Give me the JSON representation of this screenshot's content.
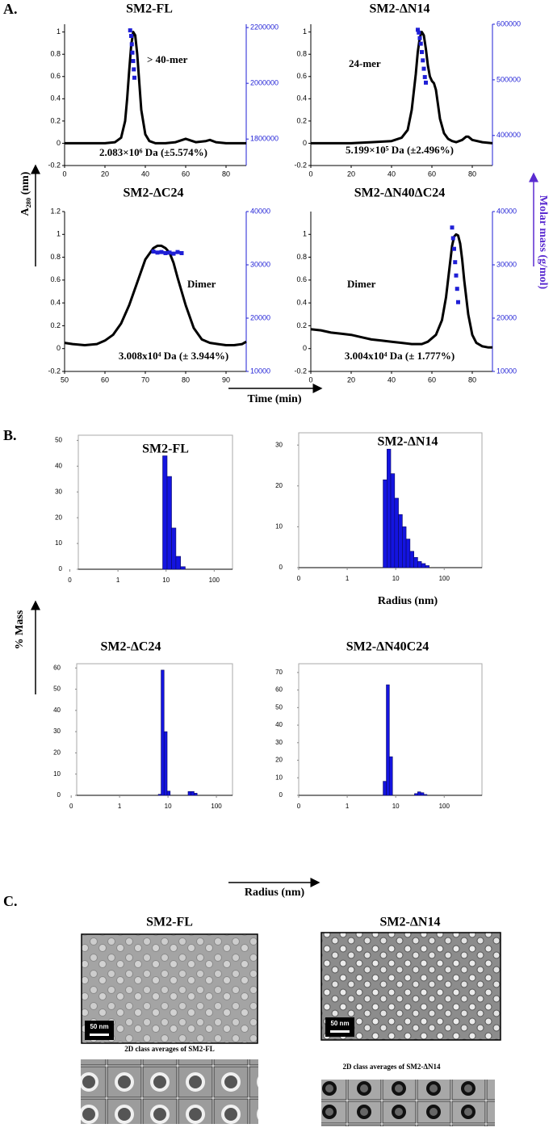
{
  "chart_data": [
    {
      "type": "line",
      "title": "SM2-FL",
      "xlim": [
        0,
        90
      ],
      "xticks": [
        0,
        20,
        40,
        60,
        80
      ],
      "ylim": [
        -0.2,
        1.07
      ],
      "yticks": [
        -0.2,
        0.0,
        0.2,
        0.4,
        0.6,
        0.8,
        1.0
      ],
      "y2lim": [
        1705000,
        2212000
      ],
      "y2ticks": [
        1800000,
        2000000,
        2200000
      ],
      "series": [
        {
          "color": "#000000",
          "x": [
            0,
            5,
            10,
            15,
            20,
            25,
            28,
            30,
            31,
            32,
            33,
            34,
            35,
            36,
            37,
            38,
            40,
            42,
            45,
            50,
            55,
            60,
            65,
            70,
            72,
            75,
            80,
            85,
            90
          ],
          "values": [
            0,
            0,
            0,
            0,
            0,
            0.01,
            0.05,
            0.2,
            0.4,
            0.65,
            0.88,
            1.0,
            0.97,
            0.8,
            0.55,
            0.3,
            0.08,
            0.02,
            0,
            0,
            0.01,
            0.04,
            0.01,
            0.02,
            0.03,
            0.01,
            0,
            0,
            0
          ]
        },
        {
          "color": "#1f1fd6",
          "axis": "y2",
          "x": [
            32.5,
            33,
            33.3,
            33.6,
            34,
            34.3,
            34.6
          ],
          "values": [
            2190000,
            2170000,
            2140000,
            2110000,
            2080000,
            2050000,
            2020000
          ]
        }
      ],
      "annotations": [
        "> 40-mer",
        "2.083×10⁶ Da (±5.574%)"
      ]
    },
    {
      "type": "line",
      "title": "SM2-ΔN14",
      "xlim": [
        0,
        90
      ],
      "xticks": [
        0,
        20,
        40,
        60,
        80
      ],
      "ylim": [
        -0.2,
        1.07
      ],
      "yticks": [
        -0.2,
        0.0,
        0.2,
        0.4,
        0.6,
        0.8,
        1.0
      ],
      "y2lim": [
        346000,
        600000
      ],
      "y2ticks": [
        400000,
        500000,
        600000
      ],
      "series": [
        {
          "color": "#000000",
          "x": [
            0,
            10,
            20,
            30,
            40,
            45,
            48,
            50,
            52,
            53,
            54,
            55,
            56,
            57,
            58,
            59,
            60,
            61,
            62,
            63,
            64,
            66,
            68,
            70,
            72,
            75,
            77,
            78,
            80,
            85,
            90
          ],
          "values": [
            0,
            0,
            0,
            0.01,
            0.02,
            0.05,
            0.12,
            0.3,
            0.62,
            0.82,
            0.95,
            1.0,
            0.97,
            0.85,
            0.7,
            0.6,
            0.56,
            0.54,
            0.48,
            0.35,
            0.22,
            0.09,
            0.04,
            0.02,
            0.01,
            0.03,
            0.06,
            0.06,
            0.03,
            0.01,
            0
          ]
        },
        {
          "color": "#1f1fd6",
          "axis": "y2",
          "x": [
            53,
            53.5,
            54,
            54.5,
            55,
            55.5,
            56,
            56.5,
            57
          ],
          "values": [
            590000,
            585000,
            575000,
            565000,
            550000,
            535000,
            520000,
            505000,
            495000
          ]
        }
      ],
      "annotations": [
        "24-mer",
        "5.199×10⁵ Da (±2.496%)"
      ]
    },
    {
      "type": "line",
      "title": "SM2-ΔC24",
      "xlim": [
        50,
        95
      ],
      "xticks": [
        50,
        60,
        70,
        80,
        90
      ],
      "ylim": [
        -0.2,
        1.2
      ],
      "yticks": [
        -0.2,
        0.0,
        0.2,
        0.4,
        0.6,
        0.8,
        1.0,
        1.2
      ],
      "y2lim": [
        10000,
        40000
      ],
      "y2ticks": [
        10000,
        20000,
        30000,
        40000
      ],
      "series": [
        {
          "color": "#000000",
          "x": [
            50,
            52,
            55,
            58,
            60,
            62,
            64,
            66,
            68,
            70,
            72,
            73,
            74,
            75,
            76,
            77,
            78,
            80,
            82,
            84,
            86,
            88,
            90,
            92,
            94,
            95
          ],
          "values": [
            0.05,
            0.04,
            0.03,
            0.04,
            0.07,
            0.12,
            0.22,
            0.38,
            0.58,
            0.78,
            0.88,
            0.9,
            0.9,
            0.88,
            0.84,
            0.75,
            0.62,
            0.38,
            0.18,
            0.08,
            0.05,
            0.04,
            0.03,
            0.03,
            0.04,
            0.06
          ]
        },
        {
          "color": "#1f1fd6",
          "axis": "y2",
          "x": [
            72,
            73,
            74,
            75,
            76,
            77,
            78,
            79
          ],
          "values": [
            32500,
            32300,
            32400,
            32200,
            32300,
            32100,
            32400,
            32200
          ]
        }
      ],
      "annotations": [
        "Dimer",
        "3.008x10⁴ Da (± 3.944%)"
      ]
    },
    {
      "type": "line",
      "title": "SM2-ΔN40ΔC24",
      "xlim": [
        0,
        90
      ],
      "xticks": [
        0,
        20,
        40,
        60,
        80
      ],
      "ylim": [
        -0.2,
        1.2
      ],
      "yticks": [
        -0.2,
        0.0,
        0.2,
        0.4,
        0.6,
        0.8,
        1.0
      ],
      "y2lim": [
        10000,
        40000
      ],
      "y2ticks": [
        10000,
        20000,
        30000,
        40000
      ],
      "series": [
        {
          "color": "#000000",
          "x": [
            0,
            5,
            10,
            15,
            20,
            25,
            30,
            35,
            40,
            45,
            50,
            55,
            58,
            62,
            65,
            67,
            69,
            70,
            71,
            72,
            73,
            74,
            75,
            76,
            78,
            80,
            82,
            85,
            88,
            90
          ],
          "values": [
            0.17,
            0.16,
            0.14,
            0.13,
            0.12,
            0.1,
            0.08,
            0.07,
            0.06,
            0.05,
            0.04,
            0.04,
            0.06,
            0.12,
            0.25,
            0.45,
            0.75,
            0.9,
            0.98,
            1.0,
            0.99,
            0.92,
            0.78,
            0.6,
            0.3,
            0.12,
            0.05,
            0.02,
            0.01,
            0.01
          ]
        },
        {
          "color": "#1f1fd6",
          "axis": "y2",
          "x": [
            70,
            70.5,
            71,
            71.5,
            72,
            72.5,
            73
          ],
          "values": [
            37000,
            35000,
            33000,
            30500,
            28000,
            25500,
            23000
          ]
        }
      ],
      "annotations": [
        "Dimer",
        "3.004x10⁴ Da (± 1.777%)"
      ]
    },
    {
      "type": "histogram",
      "title": "SM2-FL",
      "log_x": true,
      "color": "#1414e0",
      "xlim": [
        0.15,
        240
      ],
      "xticks": [
        {
          "value": 0.1,
          "label": "0"
        },
        1,
        10,
        100
      ],
      "ylim": [
        0,
        52
      ],
      "yticks": [
        0,
        10,
        20,
        30,
        40,
        50
      ],
      "bins": [
        8.5,
        10.5,
        13,
        16,
        20,
        25
      ],
      "values": [
        44,
        36,
        16,
        5,
        1
      ]
    },
    {
      "type": "histogram",
      "title": "SM2-ΔN14",
      "xlabel": "Radius (nm)",
      "log_x": true,
      "color": "#1414e0",
      "xlim": [
        0.1,
        600
      ],
      "xticks": [
        {
          "value": 0.1,
          "label": "0"
        },
        1,
        10,
        100
      ],
      "ylim": [
        0,
        33
      ],
      "yticks": [
        0,
        10,
        20,
        30
      ],
      "bins": [
        5.5,
        6.6,
        7.9,
        9.5,
        11.4,
        13.7,
        16.4,
        19.7,
        23.7,
        28.4,
        34,
        41,
        49
      ],
      "values": [
        21.5,
        29,
        23,
        17,
        13,
        10,
        7,
        4,
        2.5,
        1.5,
        1,
        0.5
      ]
    },
    {
      "type": "histogram",
      "title": "SM2-ΔC24",
      "log_x": true,
      "color": "#1414e0",
      "xlim": [
        0.13,
        215
      ],
      "xticks": [
        {
          "value": 0.1,
          "label": "0"
        },
        1,
        10,
        100
      ],
      "ylim": [
        0,
        62
      ],
      "yticks": [
        0,
        10,
        20,
        30,
        40,
        50,
        60
      ],
      "bins": [
        6.3,
        7.2,
        8.3,
        9.6,
        11.1,
        12.8,
        14.8,
        17,
        19.6,
        22.6,
        26,
        30,
        34.6,
        40,
        46
      ],
      "values": [
        0.5,
        59,
        30,
        2,
        0,
        0,
        0,
        0,
        0,
        0,
        1.8,
        1.8,
        1,
        0
      ]
    },
    {
      "type": "histogram",
      "title": "SM2-ΔN40C24",
      "log_x": true,
      "color": "#1414e0",
      "xlim": [
        0.1,
        600
      ],
      "xticks": [
        {
          "value": 0.1,
          "label": "0"
        },
        1,
        10,
        100
      ],
      "ylim": [
        0,
        75
      ],
      "yticks": [
        0,
        10,
        20,
        30,
        40,
        50,
        60,
        70
      ],
      "bins": [
        5.5,
        6.4,
        7.4,
        8.6,
        10,
        11.6,
        13.5,
        15.6,
        18.1,
        21,
        24.4,
        28.3,
        32.8,
        38,
        44.1,
        51
      ],
      "values": [
        8,
        63,
        22,
        0,
        0,
        0,
        0,
        0,
        0,
        0,
        1,
        2,
        1.5,
        0.5,
        0
      ]
    }
  ],
  "figure": {
    "panel_a": "A.",
    "a280_label": "A₂₈₀ (nm)",
    "molar_mass_label": "Molar mass (g/mol)",
    "time_label": "Time (min)",
    "panel_b": "B.",
    "mass_label": "% Mass",
    "radius_label": "Radius (nm)",
    "panel_c": "C.",
    "em": [
      {
        "title": "SM2-FL",
        "scale": "50 nm",
        "class_label": "2D class averages of SM2-FL"
      },
      {
        "title": "SM2-ΔN14",
        "scale": "50 nm",
        "class_label": "2D class averages of SM2-ΔN14"
      }
    ]
  }
}
